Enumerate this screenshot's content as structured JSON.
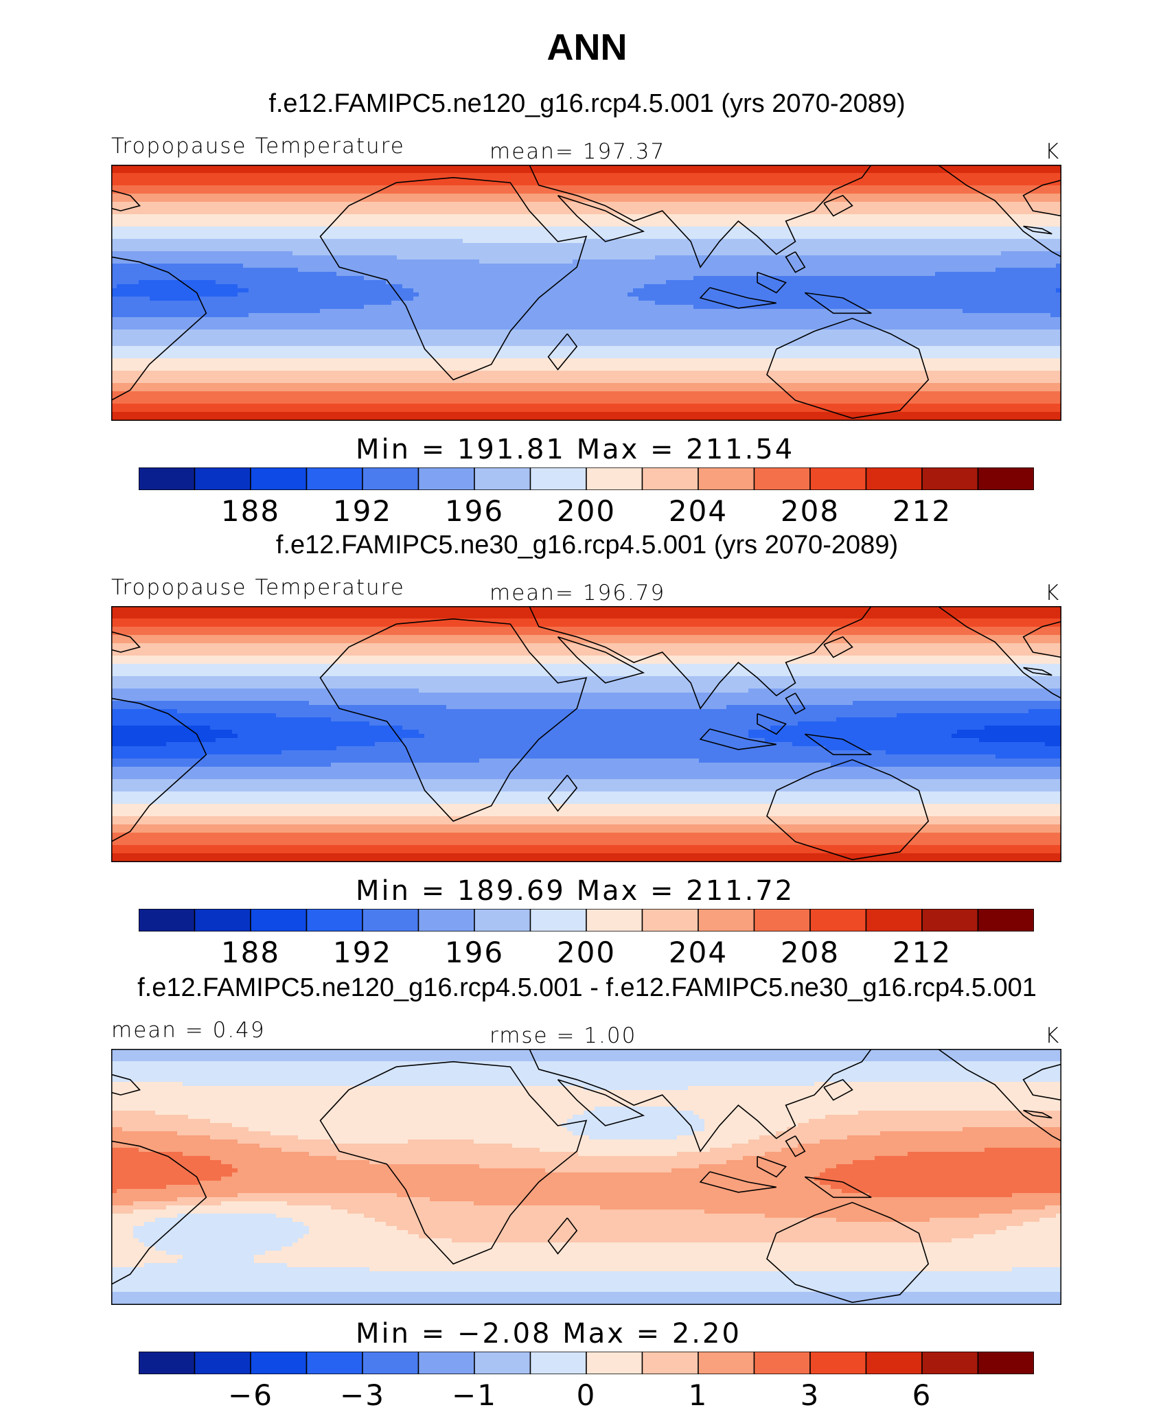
{
  "chart_data": {
    "type": "heatmap",
    "title": "ANN",
    "colorbar_colors": [
      "#0a1f8f",
      "#0733c4",
      "#0d4ae6",
      "#2663f2",
      "#4a7cf0",
      "#7fa3f2",
      "#a9c3f5",
      "#d4e4fa",
      "#fde6d6",
      "#fcc7ad",
      "#f9a07c",
      "#f4704a",
      "#ef4a26",
      "#d92c0e",
      "#a7190a",
      "#7a0000"
    ],
    "panels": [
      {
        "title": "f.e12.FAMIPC5.ne120_g16.rcp4.5.001 (yrs 2070-2089)",
        "left_label": "Tropopause Temperature",
        "center_label": "mean= 197.37",
        "units": "K",
        "minmax": "Min = 191.81 Max = 211.54",
        "colorbar_ticks": [
          "188",
          "192",
          "196",
          "200",
          "204",
          "208",
          "212"
        ],
        "field": {
          "equatorial_value": 193.5,
          "polar_value": 210.5,
          "anomaly": [
            [
              -155,
              5,
              -2.0
            ],
            [
              60,
              5,
              -0.5
            ],
            [
              -20,
              5,
              1.2
            ]
          ]
        }
      },
      {
        "title": "f.e12.FAMIPC5.ne30_g16.rcp4.5.001 (yrs 2070-2089)",
        "left_label": "Tropopause Temperature",
        "center_label": "mean= 196.79",
        "units": "K",
        "minmax": "Min = 189.69 Max = 211.72",
        "colorbar_ticks": [
          "188",
          "192",
          "196",
          "200",
          "204",
          "208",
          "212"
        ],
        "field": {
          "equatorial_value": 192.5,
          "polar_value": 210.8,
          "anomaly": [
            [
              -170,
              0,
              -2.6
            ],
            [
              120,
              0,
              -1.6
            ],
            [
              -110,
              0,
              -1.0
            ]
          ]
        }
      },
      {
        "title": "f.e12.FAMIPC5.ne120_g16.rcp4.5.001 - f.e12.FAMIPC5.ne30_g16.rcp4.5.001",
        "left_label": "mean =    0.49",
        "center_label": "rmse =    1.00",
        "units": "K",
        "minmax": "Min =  −2.08 Max =    2.20",
        "colorbar_ticks": [
          "−6",
          "−3",
          "−1",
          "0",
          "1",
          "3",
          "6"
        ],
        "field": {
          "equatorial_value": 1.2,
          "polar_value": -0.6,
          "anomaly": [
            [
              -165,
              5,
              1.4
            ],
            [
              125,
              0,
              1.3
            ],
            [
              -140,
              -30,
              -1.2
            ],
            [
              20,
              30,
              -1.0
            ],
            [
              -100,
              30,
              -0.6
            ]
          ]
        }
      }
    ]
  }
}
